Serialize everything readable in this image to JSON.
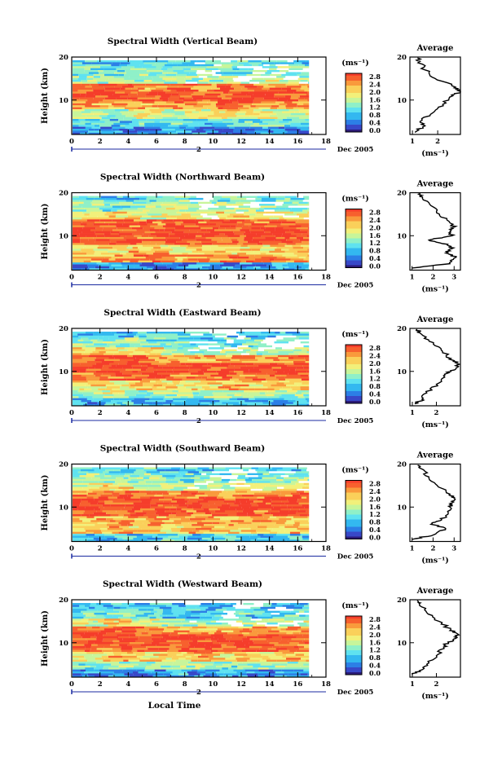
{
  "chart_data": [
    {
      "type": "heatmap",
      "title": "Spectral Width (Vertical Beam)",
      "beam": "vertical",
      "ylabel": "Height (km)",
      "xlim": [
        0,
        18
      ],
      "ylim": [
        2,
        20
      ],
      "xticks": [
        "0",
        "2",
        "4",
        "6",
        "8",
        "10",
        "12",
        "14",
        "16",
        "18"
      ],
      "yticks": [
        "10",
        "20"
      ],
      "day_marker": "2",
      "date_label": "Dec 2005",
      "data_end_hour": 16.8,
      "cells": {
        "heights_km": [
          3,
          5,
          7,
          9,
          11,
          13,
          15,
          17,
          19
        ],
        "hours": [
          1,
          3,
          5,
          7,
          9,
          11,
          13,
          15
        ],
        "values": [
          [
            0.6,
            0.7,
            0.6,
            0.8,
            0.7,
            0.6,
            0.7,
            0.6
          ],
          [
            1.2,
            1.0,
            1.4,
            1.3,
            1.1,
            1.2,
            1.3,
            1.2
          ],
          [
            1.8,
            1.6,
            2.0,
            1.7,
            1.8,
            2.1,
            1.9,
            1.8
          ],
          [
            2.6,
            2.4,
            2.5,
            2.7,
            2.6,
            2.8,
            2.5,
            2.6
          ],
          [
            3.0,
            3.1,
            2.9,
            3.2,
            3.0,
            2.9,
            3.1,
            3.0
          ],
          [
            2.8,
            3.1,
            2.6,
            2.9,
            2.7,
            3.0,
            2.8,
            2.7
          ],
          [
            1.6,
            1.8,
            1.5,
            1.7,
            1.6,
            1.7,
            1.9,
            1.6
          ],
          [
            1.4,
            1.2,
            1.6,
            1.3,
            1.5,
            1.3,
            1.4,
            1.5
          ],
          [
            1.0,
            0.9,
            1.2,
            1.1,
            1.0,
            1.3,
            1.1,
            1.0
          ]
        ]
      },
      "average": {
        "title": "Average",
        "unit": "(ms⁻¹)",
        "xlim": [
          0.9,
          2.9
        ],
        "xticks": [
          "1",
          "2"
        ],
        "xtick_values": [
          1,
          2
        ],
        "yticks": [
          "10",
          "20"
        ],
        "heights_km": [
          2.5,
          4,
          5,
          7,
          9,
          11,
          12,
          13,
          15,
          17,
          19,
          19.8
        ],
        "values": [
          1.1,
          1.5,
          1.3,
          1.8,
          2.2,
          2.6,
          2.9,
          2.7,
          1.9,
          1.5,
          1.3,
          1.2
        ]
      },
      "colorbar": {
        "unit": "(ms⁻¹)",
        "labels": [
          "2.8",
          "2.4",
          "2.0",
          "1.6",
          "1.2",
          "0.8",
          "0.4",
          "0.0"
        ]
      }
    },
    {
      "type": "heatmap",
      "title": "Spectral Width (Northward Beam)",
      "beam": "northward",
      "ylabel": "Height (km)",
      "xlim": [
        0,
        18
      ],
      "ylim": [
        2,
        20
      ],
      "xticks": [
        "0",
        "2",
        "4",
        "6",
        "8",
        "10",
        "12",
        "14",
        "16",
        "18"
      ],
      "yticks": [
        "10",
        "20"
      ],
      "day_marker": "2",
      "date_label": "Dec 2005",
      "data_end_hour": 16.8,
      "cells": {
        "heights_km": [
          3,
          5,
          7,
          9,
          11,
          13,
          15,
          17,
          19
        ],
        "hours": [
          1,
          3,
          5,
          7,
          9,
          11,
          13,
          15
        ],
        "values": [
          [
            0.7,
            0.9,
            0.8,
            0.7,
            0.9,
            0.8,
            0.7,
            0.9
          ],
          [
            2.4,
            2.6,
            2.7,
            2.5,
            2.6,
            2.8,
            2.7,
            2.5
          ],
          [
            2.2,
            2.0,
            2.4,
            2.1,
            2.3,
            2.2,
            2.1,
            2.3
          ],
          [
            3.0,
            3.1,
            2.9,
            3.2,
            3.0,
            2.9,
            3.1,
            3.0
          ],
          [
            3.2,
            3.1,
            3.0,
            3.2,
            3.1,
            3.0,
            3.2,
            3.1
          ],
          [
            2.9,
            3.0,
            2.8,
            2.9,
            2.7,
            3.0,
            2.8,
            2.9
          ],
          [
            2.0,
            2.2,
            1.9,
            2.1,
            2.0,
            2.2,
            2.1,
            2.0
          ],
          [
            1.5,
            1.3,
            1.6,
            1.8,
            1.5,
            1.7,
            1.6,
            1.5
          ],
          [
            1.2,
            1.0,
            1.3,
            1.5,
            1.2,
            1.4,
            1.1,
            1.3
          ]
        ]
      },
      "average": {
        "title": "Average",
        "unit": "(ms⁻¹)",
        "xlim": [
          0.9,
          3.3
        ],
        "xticks": [
          "1",
          "2",
          "3"
        ],
        "xtick_values": [
          1,
          2,
          3
        ],
        "yticks": [
          "10",
          "20"
        ],
        "heights_km": [
          2.5,
          3.5,
          5,
          6,
          7,
          8,
          9,
          10,
          11,
          12,
          13,
          15,
          17,
          19,
          19.8
        ],
        "values": [
          1.0,
          2.8,
          3.1,
          2.6,
          2.9,
          2.7,
          1.8,
          2.9,
          2.8,
          3.0,
          2.8,
          2.3,
          1.9,
          1.5,
          1.4
        ]
      },
      "colorbar": {
        "unit": "(ms⁻¹)",
        "labels": [
          "2.8",
          "2.4",
          "2.0",
          "1.6",
          "1.2",
          "0.8",
          "0.4",
          "0.0"
        ]
      }
    },
    {
      "type": "heatmap",
      "title": "Spectral Width (Eastward Beam)",
      "beam": "eastward",
      "ylabel": "Height (km)",
      "xlim": [
        0,
        18
      ],
      "ylim": [
        2,
        20
      ],
      "xticks": [
        "0",
        "2",
        "4",
        "6",
        "8",
        "10",
        "12",
        "14",
        "16",
        "18"
      ],
      "yticks": [
        "10",
        "20"
      ],
      "day_marker": "2",
      "date_label": "Dec 2005",
      "data_end_hour": 16.8,
      "cells": {
        "heights_km": [
          3,
          5,
          7,
          9,
          11,
          13,
          15,
          17,
          19
        ],
        "hours": [
          1,
          3,
          5,
          7,
          9,
          11,
          13,
          15
        ],
        "values": [
          [
            0.8,
            1.0,
            0.9,
            1.1,
            0.9,
            1.0,
            0.8,
            0.9
          ],
          [
            1.6,
            1.8,
            1.5,
            1.7,
            1.6,
            1.8,
            1.9,
            1.7
          ],
          [
            2.2,
            2.0,
            2.3,
            2.1,
            2.2,
            2.4,
            2.3,
            2.2
          ],
          [
            2.8,
            2.9,
            3.0,
            2.8,
            2.9,
            2.7,
            2.9,
            2.8
          ],
          [
            3.2,
            3.1,
            3.0,
            3.2,
            3.1,
            3.0,
            3.2,
            3.1
          ],
          [
            2.9,
            3.0,
            2.8,
            2.6,
            2.4,
            2.5,
            2.6,
            2.7
          ],
          [
            2.2,
            2.1,
            2.3,
            1.6,
            1.5,
            1.7,
            1.6,
            1.8
          ],
          [
            1.5,
            1.6,
            1.4,
            1.2,
            1.1,
            1.3,
            1.2,
            1.4
          ],
          [
            1.1,
            1.0,
            1.2,
            1.0,
            1.1,
            0.9,
            1.0,
            1.1
          ]
        ]
      },
      "average": {
        "title": "Average",
        "unit": "(ms⁻¹)",
        "xlim": [
          0.9,
          3.0
        ],
        "xticks": [
          "1",
          "2"
        ],
        "xtick_values": [
          1,
          2
        ],
        "yticks": [
          "10",
          "20"
        ],
        "heights_km": [
          2.5,
          3.5,
          5,
          7,
          9,
          10,
          11,
          12,
          13,
          15,
          17,
          19,
          19.8
        ],
        "values": [
          1.1,
          1.4,
          1.6,
          2.0,
          2.3,
          2.6,
          2.9,
          2.8,
          2.6,
          2.2,
          1.7,
          1.3,
          1.2
        ]
      },
      "colorbar": {
        "unit": "(ms⁻¹)",
        "labels": [
          "2.8",
          "2.4",
          "2.0",
          "1.6",
          "1.2",
          "0.8",
          "0.4",
          "0.0"
        ]
      }
    },
    {
      "type": "heatmap",
      "title": "Spectral Width (Southward Beam)",
      "beam": "southward",
      "ylabel": "Height (km)",
      "xlim": [
        0,
        18
      ],
      "ylim": [
        2,
        20
      ],
      "xticks": [
        "0",
        "2",
        "4",
        "6",
        "8",
        "10",
        "12",
        "14",
        "16",
        "18"
      ],
      "yticks": [
        "10",
        "20"
      ],
      "day_marker": "2",
      "date_label": "Dec 2005",
      "data_end_hour": 16.8,
      "cells": {
        "heights_km": [
          3,
          5,
          7,
          9,
          11,
          13,
          15,
          17,
          19
        ],
        "hours": [
          1,
          3,
          5,
          7,
          9,
          11,
          13,
          15
        ],
        "values": [
          [
            0.9,
            1.1,
            1.0,
            1.2,
            1.0,
            1.1,
            0.9,
            1.0
          ],
          [
            2.2,
            2.4,
            2.3,
            2.1,
            2.5,
            2.3,
            2.2,
            2.4
          ],
          [
            2.4,
            2.6,
            2.5,
            2.3,
            2.6,
            2.4,
            2.5,
            2.3
          ],
          [
            3.0,
            2.9,
            3.1,
            3.0,
            2.8,
            3.0,
            2.9,
            3.1
          ],
          [
            3.2,
            3.1,
            3.2,
            3.0,
            3.1,
            3.2,
            3.0,
            3.1
          ],
          [
            2.8,
            3.0,
            2.9,
            2.7,
            2.8,
            2.6,
            2.7,
            2.8
          ],
          [
            2.0,
            2.2,
            1.9,
            1.8,
            1.7,
            1.9,
            1.8,
            2.0
          ],
          [
            1.5,
            1.4,
            1.6,
            1.3,
            1.4,
            1.2,
            1.3,
            1.5
          ],
          [
            1.2,
            1.1,
            1.3,
            1.0,
            1.1,
            1.0,
            1.2,
            1.1
          ]
        ]
      },
      "average": {
        "title": "Average",
        "unit": "(ms⁻¹)",
        "xlim": [
          0.9,
          3.3
        ],
        "xticks": [
          "1",
          "2",
          "3"
        ],
        "xtick_values": [
          1,
          2,
          3
        ],
        "yticks": [
          "10",
          "20"
        ],
        "heights_km": [
          2.5,
          3.5,
          5,
          6,
          7,
          8,
          10,
          11,
          12,
          13,
          15,
          17,
          19,
          19.8
        ],
        "values": [
          1.0,
          2.0,
          2.6,
          1.9,
          2.4,
          2.6,
          2.8,
          2.9,
          3.0,
          2.8,
          2.2,
          1.8,
          1.4,
          1.3
        ]
      },
      "colorbar": {
        "unit": "(ms⁻¹)",
        "labels": [
          "2.8",
          "2.4",
          "2.0",
          "1.6",
          "1.2",
          "0.8",
          "0.4",
          "0.0"
        ]
      }
    },
    {
      "type": "heatmap",
      "title": "Spectral Width (Westward Beam)",
      "beam": "westward",
      "ylabel": "Height (km)",
      "xlabel": "Local Time",
      "xlim": [
        0,
        18
      ],
      "ylim": [
        2,
        20
      ],
      "xticks": [
        "0",
        "2",
        "4",
        "6",
        "8",
        "10",
        "12",
        "14",
        "16",
        "18"
      ],
      "yticks": [
        "10",
        "20"
      ],
      "day_marker": "2",
      "date_label": "Dec 2005",
      "data_end_hour": 16.8,
      "cells": {
        "heights_km": [
          3,
          5,
          7,
          9,
          11,
          13,
          15,
          17,
          19
        ],
        "hours": [
          1,
          3,
          5,
          7,
          9,
          11,
          13,
          15
        ],
        "values": [
          [
            0.6,
            0.8,
            0.7,
            0.9,
            0.7,
            0.8,
            0.6,
            0.7
          ],
          [
            1.4,
            1.6,
            1.5,
            1.7,
            1.6,
            1.4,
            1.5,
            1.6
          ],
          [
            2.2,
            2.4,
            2.3,
            2.1,
            2.4,
            2.3,
            2.2,
            2.4
          ],
          [
            2.9,
            3.0,
            2.8,
            2.9,
            3.1,
            2.9,
            3.0,
            2.8
          ],
          [
            3.1,
            3.2,
            3.0,
            3.1,
            3.0,
            3.2,
            3.1,
            3.0
          ],
          [
            2.9,
            3.0,
            2.8,
            2.6,
            2.5,
            2.6,
            2.7,
            2.6
          ],
          [
            2.0,
            2.1,
            1.9,
            1.6,
            1.5,
            1.6,
            1.7,
            1.8
          ],
          [
            1.3,
            1.4,
            1.2,
            1.1,
            1.0,
            1.2,
            1.1,
            1.3
          ],
          [
            1.0,
            0.9,
            1.1,
            1.0,
            0.9,
            1.0,
            1.1,
            1.0
          ]
        ]
      },
      "average": {
        "title": "Average",
        "unit": "(ms⁻¹)",
        "xlim": [
          0.9,
          3.0
        ],
        "xticks": [
          "1",
          "2"
        ],
        "xtick_values": [
          1,
          2
        ],
        "yticks": [
          "10",
          "20"
        ],
        "heights_km": [
          2.5,
          3.5,
          5,
          7,
          9,
          10,
          11,
          12,
          13,
          15,
          17,
          19,
          19.8
        ],
        "values": [
          1.0,
          1.3,
          1.6,
          2.0,
          2.3,
          2.5,
          2.8,
          2.9,
          2.6,
          2.1,
          1.6,
          1.3,
          1.2
        ]
      },
      "colorbar": {
        "unit": "(ms⁻¹)",
        "labels": [
          "2.8",
          "2.4",
          "2.0",
          "1.6",
          "1.2",
          "0.8",
          "0.4",
          "0.0"
        ]
      }
    }
  ],
  "colors": {
    "scale": [
      "#2b1b7a",
      "#3848c8",
      "#2c7fe6",
      "#33b8f0",
      "#5fe2f0",
      "#8ff0c8",
      "#c8f59a",
      "#f2f07a",
      "#fad05a",
      "#f99a3c",
      "#f7602e",
      "#f53d2b"
    ],
    "missing": "#ffffff",
    "axis": "#000000",
    "marker": "#1a2aa0"
  }
}
